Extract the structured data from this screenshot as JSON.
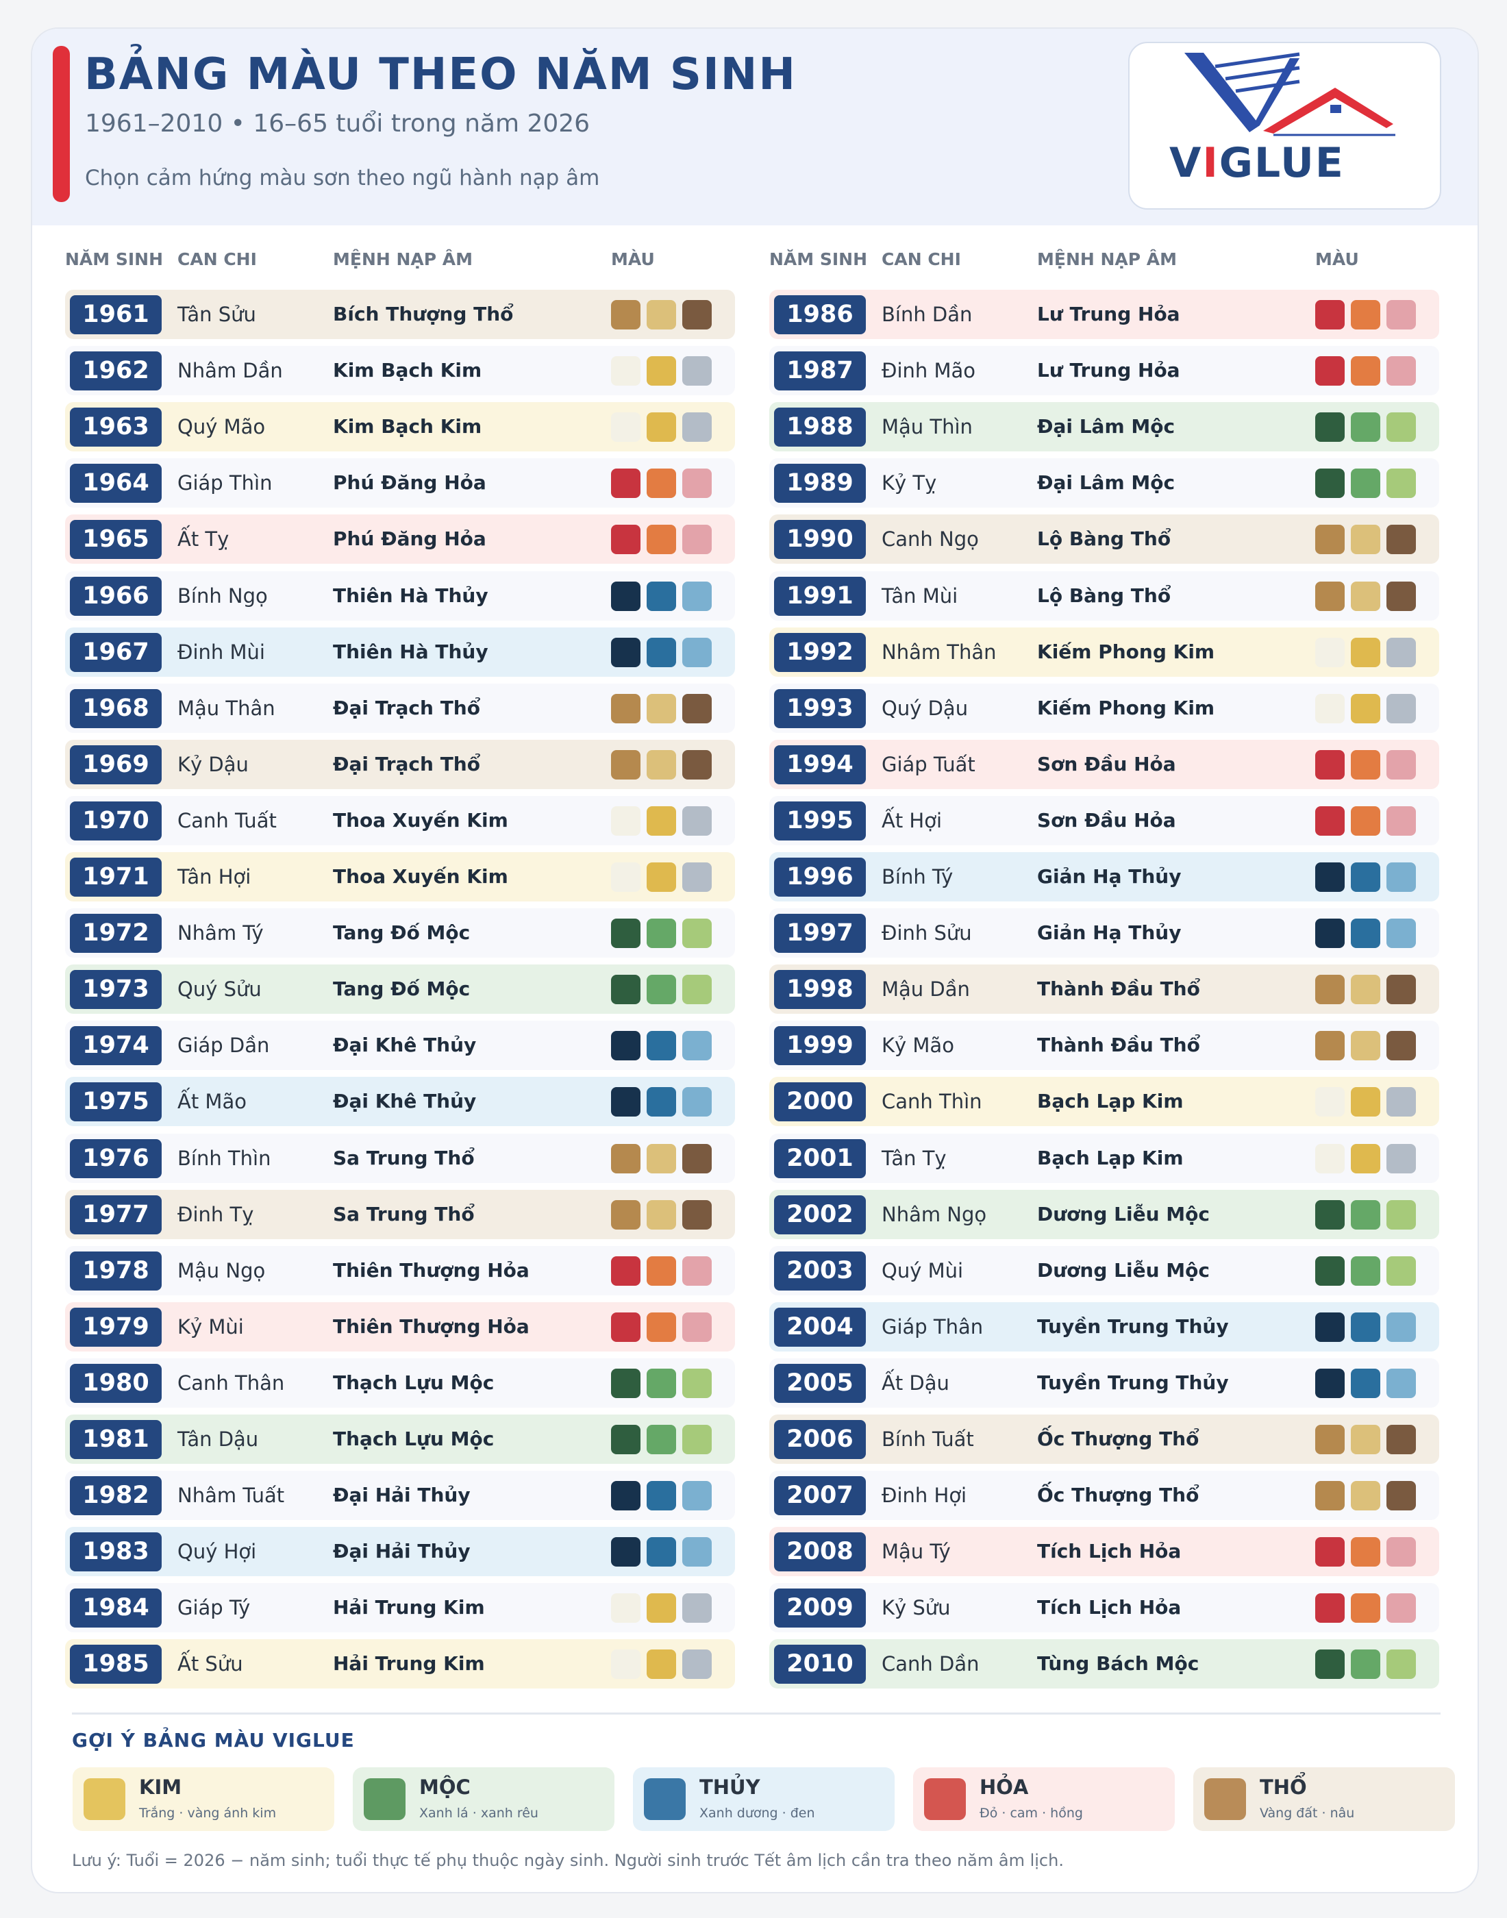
{
  "header": {
    "title": "BẢNG MÀU THEO NĂM SINH",
    "subtitle": "1961–2010  •  16–65 tuổi trong năm 2026",
    "tagline": "Chọn cảm hứng màu sơn theo ngũ hành nạp âm",
    "logo": [
      "V",
      "I",
      "GLUE"
    ]
  },
  "table": {
    "headers": [
      "NĂM SINH",
      "CAN CHI",
      "MỆNH NẠP ÂM",
      "MÀU"
    ],
    "rows": [
      {
        "year": 1961,
        "can_chi": "Tân Sửu",
        "menh": "Bích Thượng Thổ",
        "colors": [
          "#b5894e",
          "#dcc07a",
          "#7a5a40"
        ],
        "background": "#f3ede3"
      },
      {
        "year": 1962,
        "can_chi": "Nhâm Dần",
        "menh": "Kim Bạch Kim",
        "colors": [
          "#f3f1e6",
          "#dfb94e",
          "#b3bcc7"
        ],
        "background": "#f7f8fc"
      },
      {
        "year": 1963,
        "can_chi": "Quý Mão",
        "menh": "Kim Bạch Kim",
        "colors": [
          "#f3f1e6",
          "#dfb94e",
          "#b3bcc7"
        ],
        "background": "#fbf5de"
      },
      {
        "year": 1964,
        "can_chi": "Giáp Thìn",
        "menh": "Phú Đăng Hỏa",
        "colors": [
          "#c8343f",
          "#e37c42",
          "#e3a3aa"
        ],
        "background": "#f7f8fc"
      },
      {
        "year": 1965,
        "can_chi": "Ất Tỵ",
        "menh": "Phú Đăng Hỏa",
        "colors": [
          "#c8343f",
          "#e37c42",
          "#e3a3aa"
        ],
        "background": "#fdebea"
      },
      {
        "year": 1966,
        "can_chi": "Bính Ngọ",
        "menh": "Thiên Hà Thủy",
        "colors": [
          "#17324d",
          "#2a6f9e",
          "#7bb0d0"
        ],
        "background": "#f7f8fc"
      },
      {
        "year": 1967,
        "can_chi": "Đinh Mùi",
        "menh": "Thiên Hà Thủy",
        "colors": [
          "#17324d",
          "#2a6f9e",
          "#7bb0d0"
        ],
        "background": "#e4f1f9"
      },
      {
        "year": 1968,
        "can_chi": "Mậu Thân",
        "menh": "Đại Trạch Thổ",
        "colors": [
          "#b5894e",
          "#dcc07a",
          "#7a5a40"
        ],
        "background": "#f7f8fc"
      },
      {
        "year": 1969,
        "can_chi": "Kỷ Dậu",
        "menh": "Đại Trạch Thổ",
        "colors": [
          "#b5894e",
          "#dcc07a",
          "#7a5a40"
        ],
        "background": "#f3ede3"
      },
      {
        "year": 1970,
        "can_chi": "Canh Tuất",
        "menh": "Thoa Xuyến Kim",
        "colors": [
          "#f3f1e6",
          "#dfb94e",
          "#b3bcc7"
        ],
        "background": "#f7f8fc"
      },
      {
        "year": 1971,
        "can_chi": "Tân Hợi",
        "menh": "Thoa Xuyến Kim",
        "colors": [
          "#f3f1e6",
          "#dfb94e",
          "#b3bcc7"
        ],
        "background": "#fbf5de"
      },
      {
        "year": 1972,
        "can_chi": "Nhâm Tý",
        "menh": "Tang Đố Mộc",
        "colors": [
          "#2f5e3f",
          "#65a867",
          "#a6ca7a"
        ],
        "background": "#f7f8fc"
      },
      {
        "year": 1973,
        "can_chi": "Quý Sửu",
        "menh": "Tang Đố Mộc",
        "colors": [
          "#2f5e3f",
          "#65a867",
          "#a6ca7a"
        ],
        "background": "#e6f2e6"
      },
      {
        "year": 1974,
        "can_chi": "Giáp Dần",
        "menh": "Đại Khê Thủy",
        "colors": [
          "#17324d",
          "#2a6f9e",
          "#7bb0d0"
        ],
        "background": "#f7f8fc"
      },
      {
        "year": 1975,
        "can_chi": "Ất Mão",
        "menh": "Đại Khê Thủy",
        "colors": [
          "#17324d",
          "#2a6f9e",
          "#7bb0d0"
        ],
        "background": "#e4f1f9"
      },
      {
        "year": 1976,
        "can_chi": "Bính Thìn",
        "menh": "Sa Trung Thổ",
        "colors": [
          "#b5894e",
          "#dcc07a",
          "#7a5a40"
        ],
        "background": "#f7f8fc"
      },
      {
        "year": 1977,
        "can_chi": "Đinh Tỵ",
        "menh": "Sa Trung Thổ",
        "colors": [
          "#b5894e",
          "#dcc07a",
          "#7a5a40"
        ],
        "background": "#f3ede3"
      },
      {
        "year": 1978,
        "can_chi": "Mậu Ngọ",
        "menh": "Thiên Thượng Hỏa",
        "colors": [
          "#c8343f",
          "#e37c42",
          "#e3a3aa"
        ],
        "background": "#f7f8fc"
      },
      {
        "year": 1979,
        "can_chi": "Kỷ Mùi",
        "menh": "Thiên Thượng Hỏa",
        "colors": [
          "#c8343f",
          "#e37c42",
          "#e3a3aa"
        ],
        "background": "#fdebea"
      },
      {
        "year": 1980,
        "can_chi": "Canh Thân",
        "menh": "Thạch Lựu Mộc",
        "colors": [
          "#2f5e3f",
          "#65a867",
          "#a6ca7a"
        ],
        "background": "#f7f8fc"
      },
      {
        "year": 1981,
        "can_chi": "Tân Dậu",
        "menh": "Thạch Lựu Mộc",
        "colors": [
          "#2f5e3f",
          "#65a867",
          "#a6ca7a"
        ],
        "background": "#e6f2e6"
      },
      {
        "year": 1982,
        "can_chi": "Nhâm Tuất",
        "menh": "Đại Hải Thủy",
        "colors": [
          "#17324d",
          "#2a6f9e",
          "#7bb0d0"
        ],
        "background": "#f7f8fc"
      },
      {
        "year": 1983,
        "can_chi": "Quý Hợi",
        "menh": "Đại Hải Thủy",
        "colors": [
          "#17324d",
          "#2a6f9e",
          "#7bb0d0"
        ],
        "background": "#e4f1f9"
      },
      {
        "year": 1984,
        "can_chi": "Giáp Tý",
        "menh": "Hải Trung Kim",
        "colors": [
          "#f3f1e6",
          "#dfb94e",
          "#b3bcc7"
        ],
        "background": "#f7f8fc"
      },
      {
        "year": 1985,
        "can_chi": "Ất Sửu",
        "menh": "Hải Trung Kim",
        "colors": [
          "#f3f1e6",
          "#dfb94e",
          "#b3bcc7"
        ],
        "background": "#fbf5de"
      },
      {
        "year": 1986,
        "can_chi": "Bính Dần",
        "menh": "Lư Trung Hỏa",
        "colors": [
          "#c8343f",
          "#e37c42",
          "#e3a3aa"
        ],
        "background": "#fdebea"
      },
      {
        "year": 1987,
        "can_chi": "Đinh Mão",
        "menh": "Lư Trung Hỏa",
        "colors": [
          "#c8343f",
          "#e37c42",
          "#e3a3aa"
        ],
        "background": "#f7f8fc"
      },
      {
        "year": 1988,
        "can_chi": "Mậu Thìn",
        "menh": "Đại Lâm Mộc",
        "colors": [
          "#2f5e3f",
          "#65a867",
          "#a6ca7a"
        ],
        "background": "#e6f2e6"
      },
      {
        "year": 1989,
        "can_chi": "Kỷ Tỵ",
        "menh": "Đại Lâm Mộc",
        "colors": [
          "#2f5e3f",
          "#65a867",
          "#a6ca7a"
        ],
        "background": "#f7f8fc"
      },
      {
        "year": 1990,
        "can_chi": "Canh Ngọ",
        "menh": "Lộ Bàng Thổ",
        "colors": [
          "#b5894e",
          "#dcc07a",
          "#7a5a40"
        ],
        "background": "#f3ede3"
      },
      {
        "year": 1991,
        "can_chi": "Tân Mùi",
        "menh": "Lộ Bàng Thổ",
        "colors": [
          "#b5894e",
          "#dcc07a",
          "#7a5a40"
        ],
        "background": "#f7f8fc"
      },
      {
        "year": 1992,
        "can_chi": "Nhâm Thân",
        "menh": "Kiếm Phong Kim",
        "colors": [
          "#f3f1e6",
          "#dfb94e",
          "#b3bcc7"
        ],
        "background": "#fbf5de"
      },
      {
        "year": 1993,
        "can_chi": "Quý Dậu",
        "menh": "Kiếm Phong Kim",
        "colors": [
          "#f3f1e6",
          "#dfb94e",
          "#b3bcc7"
        ],
        "background": "#f7f8fc"
      },
      {
        "year": 1994,
        "can_chi": "Giáp Tuất",
        "menh": "Sơn Đầu Hỏa",
        "colors": [
          "#c8343f",
          "#e37c42",
          "#e3a3aa"
        ],
        "background": "#fdebea"
      },
      {
        "year": 1995,
        "can_chi": "Ất Hợi",
        "menh": "Sơn Đầu Hỏa",
        "colors": [
          "#c8343f",
          "#e37c42",
          "#e3a3aa"
        ],
        "background": "#f7f8fc"
      },
      {
        "year": 1996,
        "can_chi": "Bính Tý",
        "menh": "Giản Hạ Thủy",
        "colors": [
          "#17324d",
          "#2a6f9e",
          "#7bb0d0"
        ],
        "background": "#e4f1f9"
      },
      {
        "year": 1997,
        "can_chi": "Đinh Sửu",
        "menh": "Giản Hạ Thủy",
        "colors": [
          "#17324d",
          "#2a6f9e",
          "#7bb0d0"
        ],
        "background": "#f7f8fc"
      },
      {
        "year": 1998,
        "can_chi": "Mậu Dần",
        "menh": "Thành Đầu Thổ",
        "colors": [
          "#b5894e",
          "#dcc07a",
          "#7a5a40"
        ],
        "background": "#f3ede3"
      },
      {
        "year": 1999,
        "can_chi": "Kỷ Mão",
        "menh": "Thành Đầu Thổ",
        "colors": [
          "#b5894e",
          "#dcc07a",
          "#7a5a40"
        ],
        "background": "#f7f8fc"
      },
      {
        "year": 2000,
        "can_chi": "Canh Thìn",
        "menh": "Bạch Lạp Kim",
        "colors": [
          "#f3f1e6",
          "#dfb94e",
          "#b3bcc7"
        ],
        "background": "#fbf5de"
      },
      {
        "year": 2001,
        "can_chi": "Tân Tỵ",
        "menh": "Bạch Lạp Kim",
        "colors": [
          "#f3f1e6",
          "#dfb94e",
          "#b3bcc7"
        ],
        "background": "#f7f8fc"
      },
      {
        "year": 2002,
        "can_chi": "Nhâm Ngọ",
        "menh": "Dương Liễu Mộc",
        "colors": [
          "#2f5e3f",
          "#65a867",
          "#a6ca7a"
        ],
        "background": "#e6f2e6"
      },
      {
        "year": 2003,
        "can_chi": "Quý Mùi",
        "menh": "Dương Liễu Mộc",
        "colors": [
          "#2f5e3f",
          "#65a867",
          "#a6ca7a"
        ],
        "background": "#f7f8fc"
      },
      {
        "year": 2004,
        "can_chi": "Giáp Thân",
        "menh": "Tuyền Trung Thủy",
        "colors": [
          "#17324d",
          "#2a6f9e",
          "#7bb0d0"
        ],
        "background": "#e4f1f9"
      },
      {
        "year": 2005,
        "can_chi": "Ất Dậu",
        "menh": "Tuyền Trung Thủy",
        "colors": [
          "#17324d",
          "#2a6f9e",
          "#7bb0d0"
        ],
        "background": "#f7f8fc"
      },
      {
        "year": 2006,
        "can_chi": "Bính Tuất",
        "menh": "Ốc Thượng Thổ",
        "colors": [
          "#b5894e",
          "#dcc07a",
          "#7a5a40"
        ],
        "background": "#f3ede3"
      },
      {
        "year": 2007,
        "can_chi": "Đinh Hợi",
        "menh": "Ốc Thượng Thổ",
        "colors": [
          "#b5894e",
          "#dcc07a",
          "#7a5a40"
        ],
        "background": "#f7f8fc"
      },
      {
        "year": 2008,
        "can_chi": "Mậu Tý",
        "menh": "Tích Lịch Hỏa",
        "colors": [
          "#c8343f",
          "#e37c42",
          "#e3a3aa"
        ],
        "background": "#fdebea"
      },
      {
        "year": 2009,
        "can_chi": "Kỷ Sửu",
        "menh": "Tích Lịch Hỏa",
        "colors": [
          "#c8343f",
          "#e37c42",
          "#e3a3aa"
        ],
        "background": "#f7f8fc"
      },
      {
        "year": 2010,
        "can_chi": "Canh Dần",
        "menh": "Tùng Bách Mộc",
        "colors": [
          "#2f5e3f",
          "#65a867",
          "#a6ca7a"
        ],
        "background": "#e6f2e6"
      }
    ]
  },
  "legend": {
    "title": "GỢI Ý BẢNG MÀU VIGLUE",
    "items": [
      {
        "name": "KIM",
        "desc": "Trắng · vàng ánh kim",
        "color": "#e4c45e",
        "background": "#fbf5de"
      },
      {
        "name": "MỘC",
        "desc": "Xanh lá · xanh rêu",
        "color": "#5e9a62",
        "background": "#e6f2e6"
      },
      {
        "name": "THỦY",
        "desc": "Xanh dương · đen",
        "color": "#3a77a6",
        "background": "#e4f1f9"
      },
      {
        "name": "HỎA",
        "desc": "Đỏ · cam · hồng",
        "color": "#d45650",
        "background": "#fdebea"
      },
      {
        "name": "THỔ",
        "desc": "Vàng đất · nâu",
        "color": "#b98c58",
        "background": "#f3ede3"
      }
    ]
  },
  "note": "Lưu ý: Tuổi = 2026 − năm sinh; tuổi thực tế phụ thuộc ngày sinh. Người sinh trước Tết âm lịch cần tra theo năm âm lịch."
}
